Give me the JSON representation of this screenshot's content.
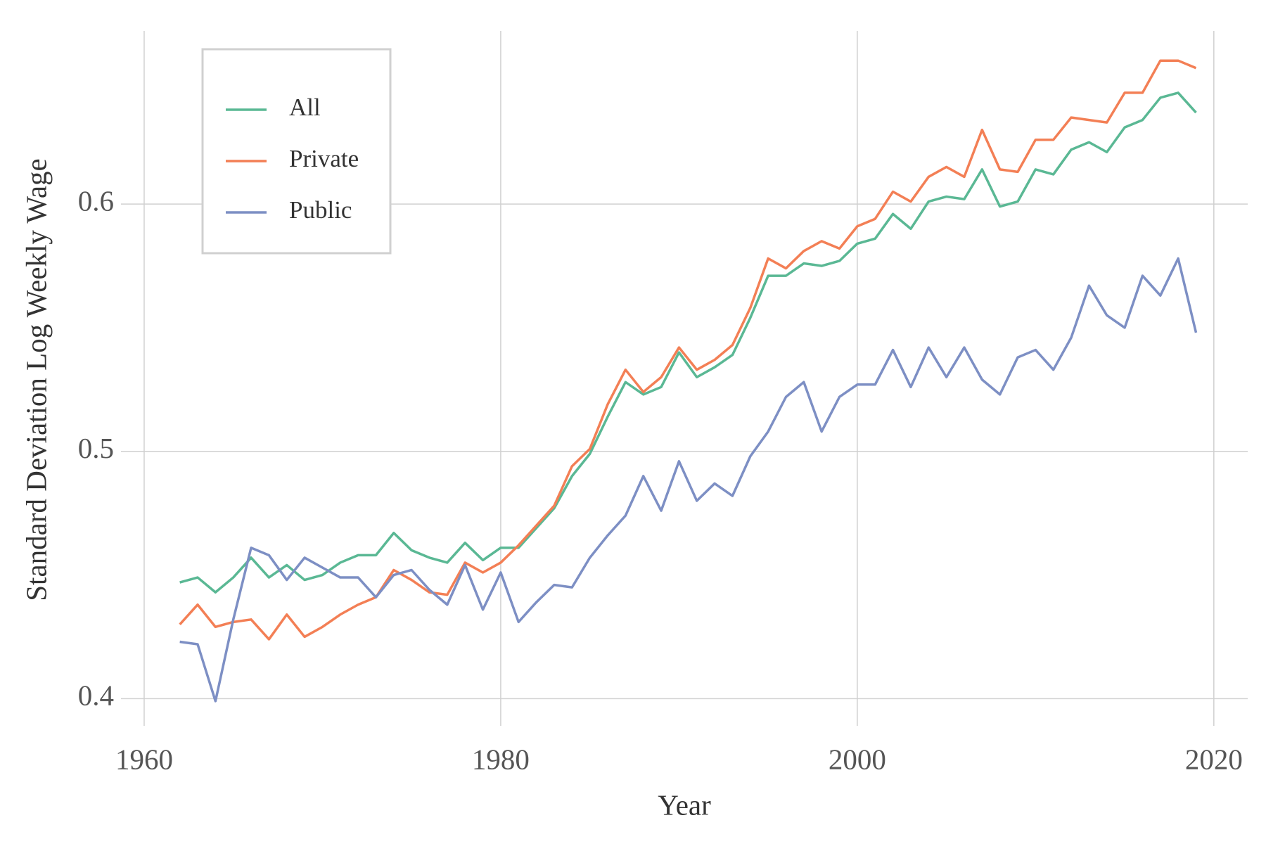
{
  "chart_data": {
    "type": "line",
    "x_label": "Year",
    "y_label": "Standard Deviation Log Weekly Wage",
    "x": [
      1962,
      1963,
      1964,
      1965,
      1966,
      1967,
      1968,
      1969,
      1970,
      1971,
      1972,
      1973,
      1974,
      1975,
      1976,
      1977,
      1978,
      1979,
      1980,
      1981,
      1982,
      1983,
      1984,
      1985,
      1986,
      1987,
      1988,
      1989,
      1990,
      1991,
      1992,
      1993,
      1994,
      1995,
      1996,
      1997,
      1998,
      1999,
      2000,
      2001,
      2002,
      2003,
      2004,
      2005,
      2006,
      2007,
      2008,
      2009,
      2010,
      2011,
      2012,
      2013,
      2014,
      2015,
      2016,
      2017,
      2018,
      2019
    ],
    "series": [
      {
        "name": "All",
        "color": "#5ab894",
        "values": [
          0.447,
          0.449,
          0.443,
          0.449,
          0.457,
          0.449,
          0.454,
          0.448,
          0.45,
          0.455,
          0.458,
          0.458,
          0.467,
          0.46,
          0.457,
          0.455,
          0.463,
          0.456,
          0.461,
          0.461,
          0.469,
          0.477,
          0.49,
          0.499,
          0.514,
          0.528,
          0.523,
          0.526,
          0.54,
          0.53,
          0.534,
          0.539,
          0.554,
          0.571,
          0.571,
          0.576,
          0.575,
          0.577,
          0.584,
          0.586,
          0.596,
          0.59,
          0.601,
          0.603,
          0.602,
          0.614,
          0.599,
          0.601,
          0.614,
          0.612,
          0.622,
          0.625,
          0.621,
          0.631,
          0.634,
          0.643,
          0.645,
          0.637
        ]
      },
      {
        "name": "Private",
        "color": "#f37f55",
        "values": [
          0.43,
          0.438,
          0.429,
          0.431,
          0.432,
          0.424,
          0.434,
          0.425,
          0.429,
          0.434,
          0.438,
          0.441,
          0.452,
          0.448,
          0.443,
          0.442,
          0.455,
          0.451,
          0.455,
          0.462,
          0.47,
          0.478,
          0.494,
          0.501,
          0.519,
          0.533,
          0.524,
          0.53,
          0.542,
          0.533,
          0.537,
          0.543,
          0.558,
          0.578,
          0.574,
          0.581,
          0.585,
          0.582,
          0.591,
          0.594,
          0.605,
          0.601,
          0.611,
          0.615,
          0.611,
          0.63,
          0.614,
          0.613,
          0.626,
          0.626,
          0.635,
          0.634,
          0.633,
          0.645,
          0.645,
          0.658,
          0.658,
          0.655
        ]
      },
      {
        "name": "Public",
        "color": "#7d8fc4",
        "values": [
          0.423,
          0.422,
          0.399,
          0.432,
          0.461,
          0.458,
          0.448,
          0.457,
          0.453,
          0.449,
          0.449,
          0.441,
          0.45,
          0.452,
          0.444,
          0.438,
          0.454,
          0.436,
          0.451,
          0.431,
          0.439,
          0.446,
          0.445,
          0.457,
          0.466,
          0.474,
          0.49,
          0.476,
          0.496,
          0.48,
          0.487,
          0.482,
          0.498,
          0.508,
          0.522,
          0.528,
          0.508,
          0.522,
          0.527,
          0.527,
          0.541,
          0.526,
          0.542,
          0.53,
          0.542,
          0.529,
          0.523,
          0.538,
          0.541,
          0.533,
          0.546,
          0.567,
          0.555,
          0.55,
          0.571,
          0.563,
          0.578,
          0.548
        ]
      }
    ],
    "xlim": [
      1958.7,
      2021.9
    ],
    "ylim": [
      0.389,
      0.67
    ],
    "xticks": [
      1960,
      1980,
      2000,
      2020
    ],
    "yticks": [
      0.4,
      0.5,
      0.6
    ],
    "grid": true,
    "legend": "upper-left"
  }
}
